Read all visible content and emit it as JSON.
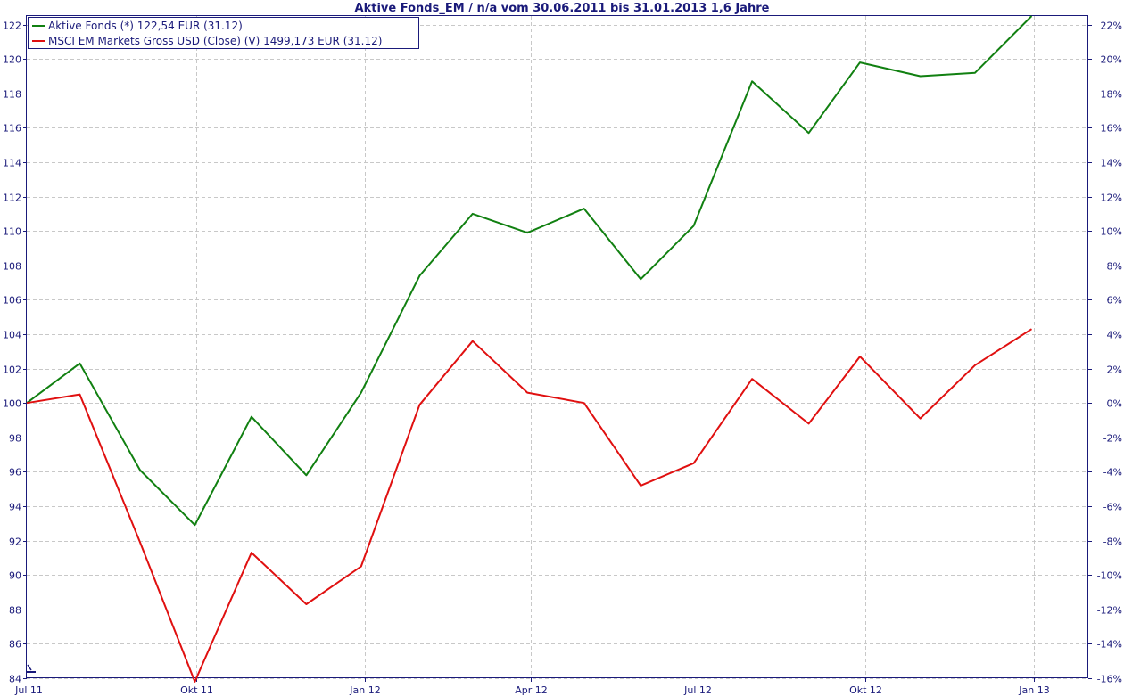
{
  "chart_data": {
    "type": "line",
    "title": "Aktive Fonds_EM / n/a vom 30.06.2011 bis 31.01.2013 1,6 Jahre",
    "x": [
      "30.06.2011",
      "29.07.2011",
      "31.08.2011",
      "30.09.2011",
      "31.10.2011",
      "30.11.2011",
      "30.12.2011",
      "31.01.2012",
      "29.02.2012",
      "30.03.2012",
      "30.04.2012",
      "31.05.2012",
      "29.06.2012",
      "31.07.2012",
      "31.08.2012",
      "28.09.2012",
      "31.10.2012",
      "30.11.2012",
      "31.12.2012"
    ],
    "x_tick_labels": [
      "Jul 11",
      "Okt 11",
      "Jan 12",
      "Apr 12",
      "Jul 12",
      "Okt 12",
      "Jan 13"
    ],
    "x_tick_dates": [
      "01.07.2011",
      "01.10.2011",
      "01.01.2012",
      "01.04.2012",
      "01.07.2012",
      "01.10.2012",
      "01.01.2013"
    ],
    "xlim": [
      "30.06.2011",
      "31.01.2013"
    ],
    "ylim": [
      84,
      122.5
    ],
    "y_ticks_left": [
      84,
      86,
      88,
      90,
      92,
      94,
      96,
      98,
      100,
      102,
      104,
      106,
      108,
      110,
      112,
      114,
      116,
      118,
      120,
      122
    ],
    "y_ticks_right": [
      -16,
      -14,
      -12,
      -10,
      -8,
      -6,
      -4,
      -2,
      0,
      2,
      4,
      6,
      8,
      10,
      12,
      14,
      16,
      18,
      20,
      22
    ],
    "y_tick_labels_left": [
      "84",
      "86",
      "88",
      "90",
      "92",
      "94",
      "96",
      "98",
      "100",
      "102",
      "104",
      "106",
      "108",
      "110",
      "112",
      "114",
      "116",
      "118",
      "120",
      "122"
    ],
    "y_tick_labels_right": [
      "-16%",
      "-14%",
      "-12%",
      "-10%",
      "-8%",
      "-6%",
      "-4%",
      "-2%",
      "0%",
      "2%",
      "4%",
      "6%",
      "8%",
      "10%",
      "12%",
      "14%",
      "16%",
      "18%",
      "20%",
      "22%"
    ],
    "grid": true,
    "legend_position": "top-left",
    "series": [
      {
        "name": "Aktive Fonds (*) 122,54 EUR (31.12)",
        "color": "#118011",
        "values": [
          100,
          102.3,
          96.1,
          92.9,
          99.2,
          95.8,
          100.6,
          107.4,
          111.0,
          109.9,
          111.3,
          107.2,
          110.3,
          118.7,
          115.7,
          119.8,
          119.0,
          119.2,
          122.5
        ]
      },
      {
        "name": "MSCI EM Markets Gross USD (Close) (V) 1499,173 EUR (31.12)",
        "color": "#e01010",
        "values": [
          100,
          100.5,
          91.9,
          83.8,
          91.3,
          88.3,
          90.5,
          99.9,
          103.6,
          100.6,
          100.0,
          95.2,
          96.5,
          101.4,
          98.8,
          102.7,
          99.1,
          102.2,
          104.3
        ]
      }
    ]
  }
}
